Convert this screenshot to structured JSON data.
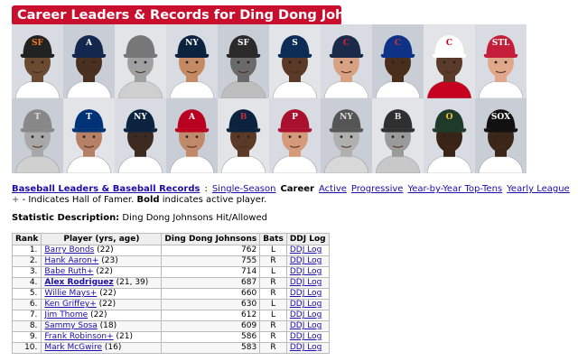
{
  "page": {
    "title": "Career Leaders & Records for Ding Dong Johnsons"
  },
  "photos": [
    {
      "cap": "#222",
      "logo": "SF",
      "logo_color": "#f47a20",
      "skin": "#6b4a32",
      "jersey": "#ffffff"
    },
    {
      "cap": "#13274f",
      "logo": "A",
      "logo_color": "#ffffff",
      "skin": "#4a3020",
      "jersey": "#ffffff"
    },
    {
      "cap": "#777777",
      "logo": "",
      "logo_color": "#999999",
      "skin": "#a0a0a0",
      "jersey": "#cfcfcf"
    },
    {
      "cap": "#0c2340",
      "logo": "NY",
      "logo_color": "#ffffff",
      "skin": "#c48a63",
      "jersey": "#ffffff"
    },
    {
      "cap": "#2a2a2a",
      "logo": "SF",
      "logo_color": "#ffffff",
      "skin": "#6a6a6a",
      "jersey": "#bdbdbd"
    },
    {
      "cap": "#0c2c56",
      "logo": "S",
      "logo_color": "#ffffff",
      "skin": "#5a3a26",
      "jersey": "#ffffff"
    },
    {
      "cap": "#1a2b4a",
      "logo": "C",
      "logo_color": "#e31937",
      "skin": "#d9a184",
      "jersey": "#ffffff"
    },
    {
      "cap": "#0e3386",
      "logo": "C",
      "logo_color": "#cc3433",
      "skin": "#4a2e1c",
      "jersey": "#ffffff"
    },
    {
      "cap": "#ffffff",
      "logo": "C",
      "logo_color": "#c6011f",
      "skin": "#5a3a28",
      "jersey": "#c6011f"
    },
    {
      "cap": "#c41e3a",
      "logo": "STL",
      "logo_color": "#ffffff",
      "skin": "#e0a78a",
      "jersey": "#ffffff"
    },
    {
      "cap": "#888888",
      "logo": "T",
      "logo_color": "#dddddd",
      "skin": "#a8a8a8",
      "jersey": "#d0d0d0"
    },
    {
      "cap": "#003278",
      "logo": "T",
      "logo_color": "#ffffff",
      "skin": "#b58065",
      "jersey": "#ffffff"
    },
    {
      "cap": "#0c2340",
      "logo": "NY",
      "logo_color": "#ffffff",
      "skin": "#3d2a20",
      "jersey": "#ffffff"
    },
    {
      "cap": "#ba0021",
      "logo": "A",
      "logo_color": "#ffffff",
      "skin": "#c08a6a",
      "jersey": "#ffffff"
    },
    {
      "cap": "#0c2340",
      "logo": "B",
      "logo_color": "#bd3039",
      "skin": "#5b3a28",
      "jersey": "#ffffff"
    },
    {
      "cap": "#a8102e",
      "logo": "P",
      "logo_color": "#ffffff",
      "skin": "#d49a7a",
      "jersey": "#ffffff"
    },
    {
      "cap": "#555555",
      "logo": "NY",
      "logo_color": "#dddddd",
      "skin": "#b0b0b0",
      "jersey": "#d8d8d8"
    },
    {
      "cap": "#2f2f2f",
      "logo": "B",
      "logo_color": "#dddddd",
      "skin": "#9a9a9a",
      "jersey": "#c8c8c8"
    },
    {
      "cap": "#1f3a2a",
      "logo": "O",
      "logo_color": "#f2c230",
      "skin": "#3a2418",
      "jersey": "#ffffff"
    },
    {
      "cap": "#111111",
      "logo": "SOX",
      "logo_color": "#ffffff",
      "skin": "#3b2618",
      "jersey": "#ffffff"
    }
  ],
  "nav": {
    "main_link": "Baseball Leaders & Baseball Records",
    "separator": ":",
    "single_season": "Single-Season",
    "current": "Career",
    "active": "Active",
    "progressive": "Progressive",
    "year_by_year": "Year-by-Year Top-Tens",
    "yearly_league": "Yearly League"
  },
  "legend": {
    "plus": "+",
    "text_a": " - Indicates Hall of Famer. ",
    "bold": "Bold",
    "text_b": " indicates active player."
  },
  "stat": {
    "label": "Statistic Description:",
    "value": "Ding Dong Johnsons Hit/Allowed"
  },
  "table": {
    "headers": [
      "Rank",
      "Player (yrs, age)",
      "Ding Dong Johnsons",
      "Bats",
      "DDJ Log"
    ],
    "rows": [
      {
        "rank": "1.",
        "name": "Barry Bonds",
        "suffix": " (22)",
        "value": "762",
        "bats": "L",
        "log": "DDJ Log",
        "active": false
      },
      {
        "rank": "2.",
        "name": "Hank Aaron+",
        "suffix": " (23)",
        "value": "755",
        "bats": "R",
        "log": "DDJ Log",
        "active": false
      },
      {
        "rank": "3.",
        "name": "Babe Ruth+",
        "suffix": " (22)",
        "value": "714",
        "bats": "L",
        "log": "DDJ Log",
        "active": false
      },
      {
        "rank": "4.",
        "name": "Alex Rodriguez",
        "suffix": " (21, 39)",
        "value": "687",
        "bats": "R",
        "log": "DDJ Log",
        "active": true
      },
      {
        "rank": "5.",
        "name": "Willie Mays+",
        "suffix": " (22)",
        "value": "660",
        "bats": "R",
        "log": "DDJ Log",
        "active": false
      },
      {
        "rank": "6.",
        "name": "Ken Griffey+",
        "suffix": " (22)",
        "value": "630",
        "bats": "L",
        "log": "DDJ Log",
        "active": false
      },
      {
        "rank": "7.",
        "name": "Jim Thome",
        "suffix": " (22)",
        "value": "612",
        "bats": "L",
        "log": "DDJ Log",
        "active": false
      },
      {
        "rank": "8.",
        "name": "Sammy Sosa",
        "suffix": " (18)",
        "value": "609",
        "bats": "R",
        "log": "DDJ Log",
        "active": false
      },
      {
        "rank": "9.",
        "name": "Frank Robinson+",
        "suffix": " (21)",
        "value": "586",
        "bats": "R",
        "log": "DDJ Log",
        "active": false
      },
      {
        "rank": "10.",
        "name": "Mark McGwire",
        "suffix": " (16)",
        "value": "583",
        "bats": "R",
        "log": "DDJ Log",
        "active": false
      }
    ]
  }
}
